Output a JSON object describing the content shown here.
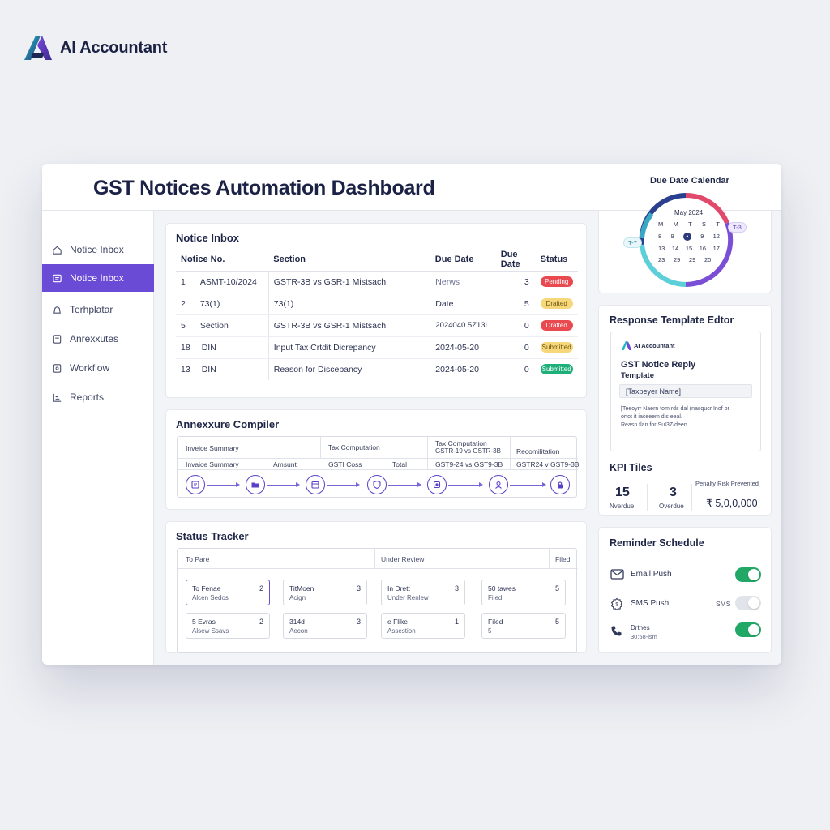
{
  "brand": {
    "name": "AI Accountant"
  },
  "window": {
    "title": "GST Notices Automation Dashboard"
  },
  "sidebar": {
    "items": [
      {
        "label": "Notice Inbox",
        "icon": "home-icon",
        "active": false
      },
      {
        "label": "Notice Inbox",
        "icon": "inbox-icon",
        "active": true
      },
      {
        "label": "Terhplatar",
        "icon": "bell-icon",
        "active": false
      },
      {
        "label": "Anrexxutes",
        "icon": "document-icon",
        "active": false
      },
      {
        "label": "Workflow",
        "icon": "workflow-icon",
        "active": false
      },
      {
        "label": "Reports",
        "icon": "reports-icon",
        "active": false
      }
    ]
  },
  "notice_inbox": {
    "title": "Notice Inbox",
    "columns": [
      "Notice No.",
      "Section",
      "Due Date",
      "Due Date",
      "Status"
    ],
    "rows": [
      {
        "c1": "1",
        "c2": "ASMT-10/2024",
        "c3": "GSTR-3B vs GSR-1 Mistsach",
        "c4": "Nerws",
        "c5": "3",
        "status": "Pending"
      },
      {
        "c1": "2",
        "c2": "73(1)",
        "c3": "73(1)",
        "c4": "Date",
        "c5": "5",
        "status": "Drafted"
      },
      {
        "c1": "5",
        "c2": "Section",
        "c3": "GSTR-3B vs GSR-1 Mistsach",
        "c4": "2024040 5Z13L...",
        "c5": "0",
        "status": "Drafted"
      },
      {
        "c1": "18",
        "c2": "DIN",
        "c3": "Input Tax Crtdit Dicrepancy",
        "c4": "2024-05-20",
        "c5": "0",
        "status": "Submitted"
      },
      {
        "c1": "13",
        "c2": "DIN",
        "c3": "Reason for Discepancy",
        "c4": "2024-05-20",
        "c5": "0",
        "status": "Submitted"
      }
    ]
  },
  "annexure": {
    "title": "Annexxure Compiler",
    "row1": [
      "Inveice Summary",
      "Tax Computation",
      "Tax Computation",
      "Recomilitation"
    ],
    "row1_sub": "GSTR-19 vs GSTR-3B",
    "row2": [
      "Invaice Summary",
      "Amsunt",
      "GSTI Coss",
      "Total",
      "GST9-24 vs GST9-3B",
      "GSTR24 v GST9-3B"
    ],
    "flow_icons": [
      "invoice-icon",
      "folder-icon",
      "calendar-icon",
      "shield-icon",
      "gear-icon",
      "user-icon",
      "lock-icon"
    ]
  },
  "status_tracker": {
    "title": "Status Tracker",
    "heads": [
      "To Pare",
      "Under Review",
      "Filed"
    ],
    "cards": [
      {
        "a": "To Fenae",
        "b": "Alcen Sedos",
        "n": "2"
      },
      {
        "a": "TitMoen",
        "b": "Acign",
        "n": "3"
      },
      {
        "a": "In Drett",
        "b": "Under Renlew",
        "n": "3"
      },
      {
        "a": "50 tawes",
        "b": "Filed",
        "n": "5"
      },
      {
        "a": "5 Evras",
        "b": "Alsew Ssavs",
        "n": "2"
      },
      {
        "a": "314d",
        "b": "Aecon",
        "n": "3"
      },
      {
        "a": "e Flike",
        "b": "Assestion",
        "n": "1"
      },
      {
        "a": "Filed",
        "b": "5",
        "n": "5"
      }
    ]
  },
  "calendar": {
    "title": "Due Date Calendar",
    "month": "May 2024",
    "weekdays": [
      "M",
      "M",
      "T",
      "S",
      "T"
    ],
    "rows": [
      [
        "8",
        "9",
        "●",
        "9",
        "12"
      ],
      [
        "13",
        "14",
        "15",
        "16",
        "17"
      ],
      [
        "23",
        "29",
        "29",
        "20",
        ""
      ]
    ],
    "tag_left": "T-7",
    "tag_right": "T-3"
  },
  "template_editor": {
    "title": "Response Template Edtor",
    "brand": "AI Accountant",
    "doc_title": "GST Notice Reply",
    "doc_sub": "Template",
    "placeholder": "[Taxpeyer Name]",
    "body_lines": [
      "[Teeoyrr Naern tom rds dal (nasqucr Inof br",
      "ortot it iaceeem dis eeal.",
      "Reasn flan for SuI3Z/deen"
    ]
  },
  "kpi": {
    "title": "KPI Tiles",
    "tiles": [
      {
        "value": "15",
        "label": "Nverdue"
      },
      {
        "value": "3",
        "label": "Overdue"
      },
      {
        "value": "₹ 5,0,0,000",
        "label": "Penalty Risk Prevented"
      }
    ]
  },
  "reminder": {
    "title": "Reminder Schedule",
    "items": [
      {
        "icon": "mail-icon",
        "label": "Email Push",
        "extra": "",
        "on": true
      },
      {
        "icon": "sms-icon",
        "label": "SMS Push",
        "extra": "SMS",
        "on": false
      },
      {
        "icon": "phone-icon",
        "label": "Drthes",
        "sub": "30:58-ism",
        "extra": "",
        "on": true
      }
    ]
  },
  "colors": {
    "accent": "#6a4bd6",
    "success": "#22a866",
    "danger": "#e94a4f",
    "warning": "#f6d77a"
  }
}
